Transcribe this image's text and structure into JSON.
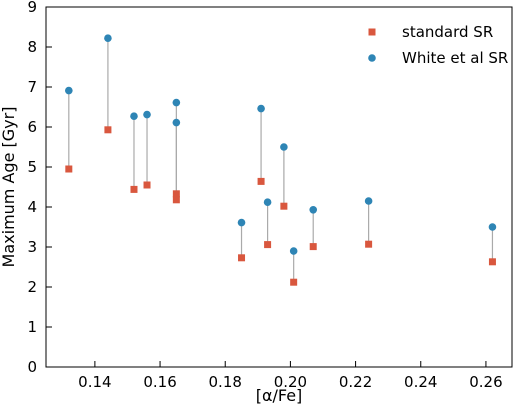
{
  "chart_data": {
    "type": "scatter",
    "xlabel": "[α/Fe]",
    "ylabel": "Maximum Age [Gyr]",
    "xlim": [
      0.125,
      0.268
    ],
    "ylim": [
      0,
      9
    ],
    "xticks": [
      "0.14",
      "0.16",
      "0.18",
      "0.20",
      "0.22",
      "0.24",
      "0.26"
    ],
    "yticks": [
      "0",
      "1",
      "2",
      "3",
      "4",
      "5",
      "6",
      "7",
      "8",
      "9"
    ],
    "grid": false,
    "legend_position": "top-right",
    "connectors": true,
    "series": [
      {
        "name": "standard SR",
        "marker": "square",
        "color": "#d9573e",
        "points": [
          {
            "x": 0.132,
            "y": 4.95
          },
          {
            "x": 0.144,
            "y": 5.93
          },
          {
            "x": 0.152,
            "y": 4.44
          },
          {
            "x": 0.156,
            "y": 4.55
          },
          {
            "x": 0.165,
            "y": 4.33
          },
          {
            "x": 0.165,
            "y": 4.18
          },
          {
            "x": 0.185,
            "y": 2.73
          },
          {
            "x": 0.191,
            "y": 4.64
          },
          {
            "x": 0.193,
            "y": 3.06
          },
          {
            "x": 0.198,
            "y": 4.02
          },
          {
            "x": 0.201,
            "y": 2.12
          },
          {
            "x": 0.207,
            "y": 3.01
          },
          {
            "x": 0.224,
            "y": 3.07
          },
          {
            "x": 0.262,
            "y": 2.63
          }
        ]
      },
      {
        "name": "White et al SR",
        "marker": "circle",
        "color": "#2e85b5",
        "points": [
          {
            "x": 0.132,
            "y": 6.91
          },
          {
            "x": 0.144,
            "y": 8.22
          },
          {
            "x": 0.152,
            "y": 6.27
          },
          {
            "x": 0.156,
            "y": 6.31
          },
          {
            "x": 0.165,
            "y": 6.61
          },
          {
            "x": 0.165,
            "y": 6.11
          },
          {
            "x": 0.185,
            "y": 3.61
          },
          {
            "x": 0.191,
            "y": 6.46
          },
          {
            "x": 0.193,
            "y": 4.12
          },
          {
            "x": 0.198,
            "y": 5.5
          },
          {
            "x": 0.201,
            "y": 2.9
          },
          {
            "x": 0.207,
            "y": 3.93
          },
          {
            "x": 0.224,
            "y": 4.15
          },
          {
            "x": 0.262,
            "y": 3.5
          }
        ]
      }
    ]
  }
}
